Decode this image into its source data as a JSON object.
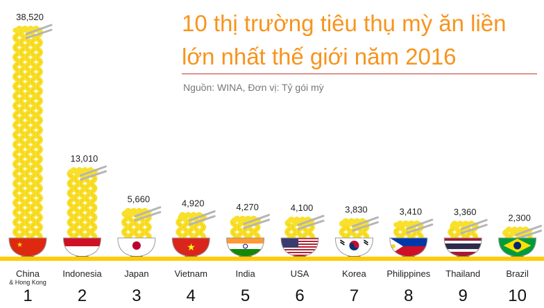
{
  "title_line1": "10 thị trường tiêu thụ mỳ ăn liền",
  "title_line2": "lớn nhất thế giới năm 2016",
  "subtitle": "Nguồn: WINA, Đơn vị: Tỷ gói mỳ",
  "colors": {
    "accent": "#f7941d",
    "noodle": "#f9e02b",
    "noodle_outline": "#e8b800",
    "baseline": "#ffcc00",
    "chopsticks": "#b5b5b5",
    "rule": "#c0392b"
  },
  "chart_data": {
    "type": "bar",
    "categories": [
      "China",
      "Indonesia",
      "Japan",
      "Vietnam",
      "India",
      "USA",
      "Korea",
      "Philippines",
      "Thailand",
      "Brazil"
    ],
    "category_sublabels": [
      "& Hong Kong",
      "",
      "",
      "",
      "",
      "",
      "",
      "",
      "",
      ""
    ],
    "ranks": [
      "1",
      "2",
      "3",
      "4",
      "5",
      "6",
      "7",
      "8",
      "9",
      "10"
    ],
    "values": [
      38520,
      13010,
      5660,
      4920,
      4270,
      4100,
      3830,
      3410,
      3360,
      2300
    ],
    "value_labels": [
      "38,520",
      "13,010",
      "5,660",
      "4,920",
      "4,270",
      "4,100",
      "3,830",
      "3,410",
      "3,360",
      "2,300"
    ],
    "flags": [
      "china-flag",
      "indonesia-flag",
      "japan-flag",
      "vietnam-flag",
      "india-flag",
      "usa-flag",
      "korea-flag",
      "philippines-flag",
      "thailand-flag",
      "brazil-flag"
    ],
    "title": "10 thị trường tiêu thụ mỳ ăn liền lớn nhất thế giới năm 2016",
    "subtitle": "Nguồn: WINA, Đơn vị: Tỷ gói mỳ",
    "xlabel": "",
    "ylabel": "",
    "grid": false
  }
}
